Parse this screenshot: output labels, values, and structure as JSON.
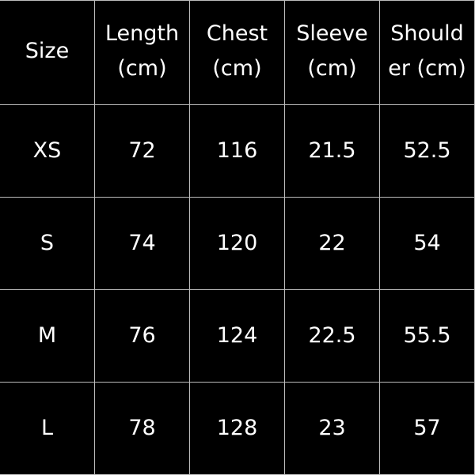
{
  "table": {
    "headers": [
      "Size",
      "Length\n(cm)",
      "Chest\n(cm)",
      "Sleeve\n(cm)",
      "Should\ner (cm)"
    ],
    "header_lines": [
      [
        "Size"
      ],
      [
        "Length",
        "(cm)"
      ],
      [
        "Chest",
        "(cm)"
      ],
      [
        "Sleeve",
        "(cm)"
      ],
      [
        "Should",
        "er (cm)"
      ]
    ],
    "rows": [
      [
        "XS",
        "72",
        "116",
        "21.5",
        "52.5"
      ],
      [
        "S",
        "74",
        "120",
        "22",
        "54"
      ],
      [
        "M",
        "76",
        "124",
        "22.5",
        "55.5"
      ],
      [
        "L",
        "78",
        "128",
        "23",
        "57"
      ]
    ]
  },
  "colors": {
    "background": "#000000",
    "text": "#ffffff",
    "grid": "#bdbdbd"
  }
}
